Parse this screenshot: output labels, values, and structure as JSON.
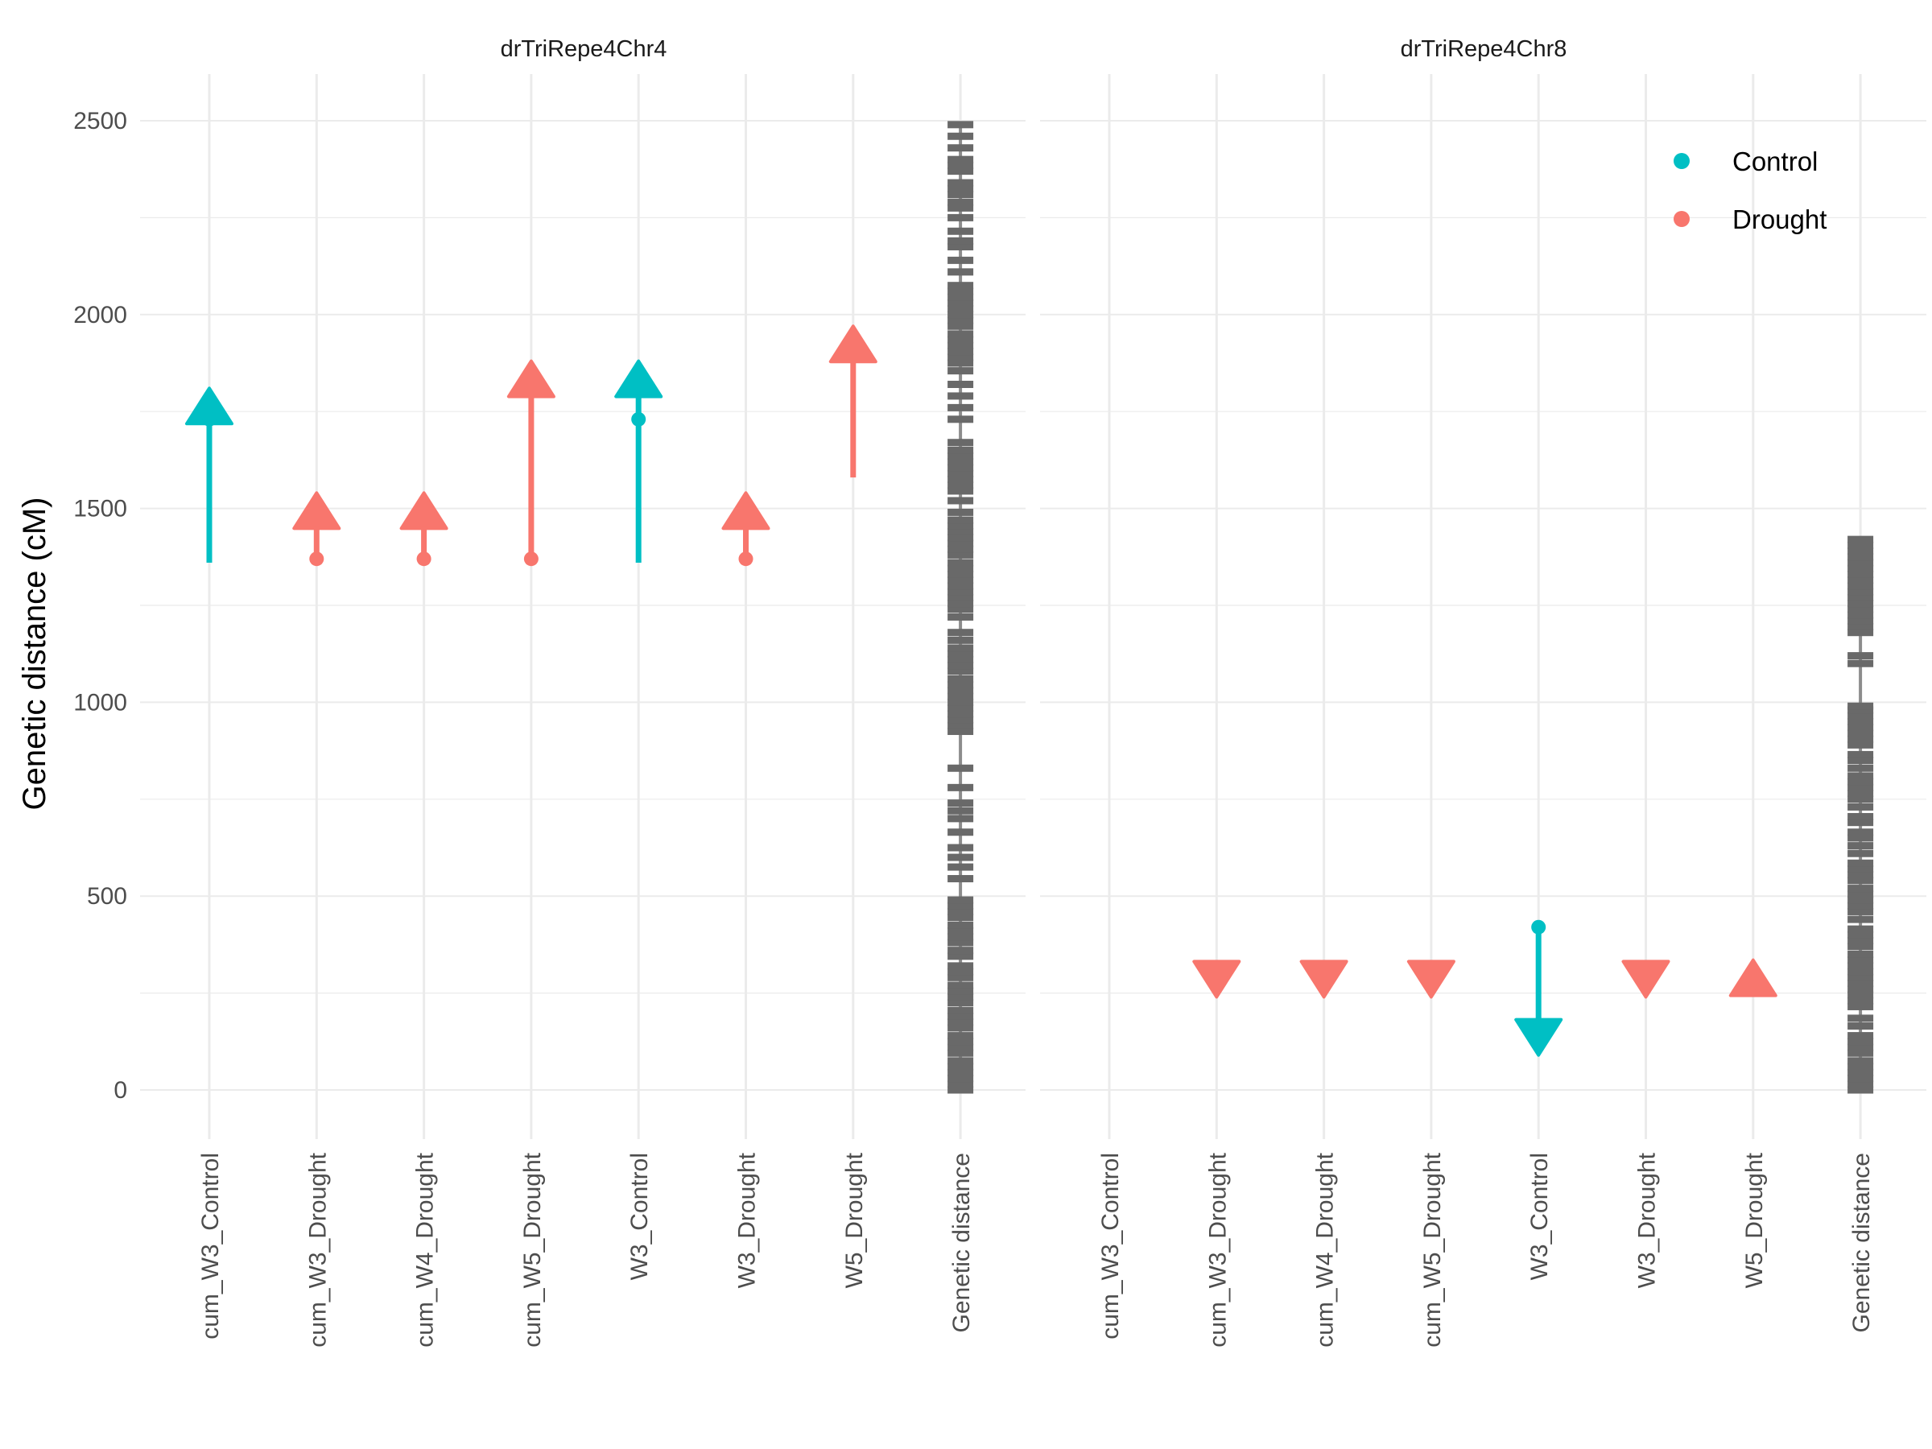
{
  "chart_data": {
    "type": "segment-arrow",
    "ylabel": "Genetic distance (cM)",
    "ylim": [
      -120,
      2610
    ],
    "yticks": [
      0,
      500,
      1000,
      1500,
      2000,
      2500
    ],
    "categories": [
      "cum_W3_Control",
      "cum_W3_Drought",
      "cum_W4_Drought",
      "cum_W5_Drought",
      "W3_Control",
      "W3_Drought",
      "W5_Drought",
      "Genetic distance"
    ],
    "colors": {
      "Control": "#00BFC4",
      "Drought": "#F8766D",
      "map": "#696969",
      "map_line": "#8c8c8c",
      "grid": "#ebebeb"
    },
    "legend": {
      "position": "top-right",
      "entries": [
        "Control",
        "Drought"
      ]
    },
    "panels": [
      {
        "title": "drTriRepe4Chr4",
        "segments": [
          {
            "category": "cum_W3_Control",
            "group": "Control",
            "start": 1360,
            "end": 1810,
            "point": 1730
          },
          {
            "category": "cum_W3_Drought",
            "group": "Drought",
            "start": 1370,
            "end": 1540,
            "point": 1370
          },
          {
            "category": "cum_W4_Drought",
            "group": "Drought",
            "start": 1370,
            "end": 1540,
            "point": 1370
          },
          {
            "category": "cum_W5_Drought",
            "group": "Drought",
            "start": 1370,
            "end": 1880,
            "point": 1370
          },
          {
            "category": "W3_Control",
            "group": "Control",
            "start": 1360,
            "end": 1880,
            "point": 1730
          },
          {
            "category": "W3_Drought",
            "group": "Drought",
            "start": 1370,
            "end": 1540,
            "point": 1370
          },
          {
            "category": "W5_Drought",
            "group": "Drought",
            "start": 1580,
            "end": 1970,
            "point": null
          }
        ],
        "map_range": [
          0,
          2490
        ],
        "markers": [
          0,
          15,
          30,
          45,
          60,
          75,
          95,
          110,
          125,
          140,
          160,
          175,
          190,
          205,
          225,
          240,
          255,
          270,
          290,
          305,
          320,
          345,
          360,
          380,
          395,
          410,
          425,
          445,
          460,
          475,
          490,
          545,
          575,
          600,
          625,
          665,
          700,
          720,
          740,
          780,
          830,
          925,
          940,
          955,
          970,
          985,
          1000,
          1015,
          1030,
          1045,
          1060,
          1080,
          1095,
          1110,
          1125,
          1140,
          1160,
          1180,
          1220,
          1240,
          1255,
          1270,
          1285,
          1300,
          1315,
          1330,
          1345,
          1360,
          1380,
          1395,
          1410,
          1425,
          1440,
          1455,
          1470,
          1490,
          1520,
          1545,
          1560,
          1575,
          1590,
          1605,
          1620,
          1635,
          1650,
          1670,
          1730,
          1760,
          1790,
          1820,
          1855,
          1875,
          1890,
          1905,
          1920,
          1935,
          1950,
          1970,
          1985,
          2000,
          2015,
          2030,
          2045,
          2060,
          2075,
          2110,
          2140,
          2175,
          2190,
          2215,
          2250,
          2275,
          2290,
          2310,
          2325,
          2340,
          2370,
          2385,
          2400,
          2430,
          2460,
          2490
        ]
      },
      {
        "title": "drTriRepe4Chr8",
        "segments": [
          {
            "category": "cum_W3_Drought",
            "group": "Drought",
            "start": 280,
            "end": 240,
            "point": null
          },
          {
            "category": "cum_W4_Drought",
            "group": "Drought",
            "start": 280,
            "end": 240,
            "point": null
          },
          {
            "category": "cum_W5_Drought",
            "group": "Drought",
            "start": 280,
            "end": 240,
            "point": null
          },
          {
            "category": "W3_Control",
            "group": "Control",
            "start": 420,
            "end": 90,
            "point": 420
          },
          {
            "category": "W3_Drought",
            "group": "Drought",
            "start": 280,
            "end": 240,
            "point": null
          },
          {
            "category": "W5_Drought",
            "group": "Drought",
            "start": 285,
            "end": 335,
            "point": 285
          }
        ],
        "map_range": [
          0,
          1420
        ],
        "markers": [
          0,
          15,
          30,
          45,
          60,
          75,
          95,
          110,
          125,
          140,
          165,
          185,
          215,
          230,
          245,
          260,
          275,
          290,
          305,
          320,
          335,
          350,
          370,
          385,
          400,
          415,
          440,
          460,
          475,
          490,
          505,
          520,
          540,
          555,
          570,
          585,
          610,
          630,
          650,
          665,
          690,
          705,
          730,
          750,
          765,
          780,
          795,
          810,
          830,
          850,
          865,
          890,
          905,
          920,
          935,
          950,
          965,
          980,
          990,
          1100,
          1120,
          1180,
          1195,
          1210,
          1225,
          1240,
          1255,
          1270,
          1285,
          1300,
          1315,
          1330,
          1345,
          1360,
          1375,
          1390,
          1405,
          1420
        ]
      }
    ]
  }
}
